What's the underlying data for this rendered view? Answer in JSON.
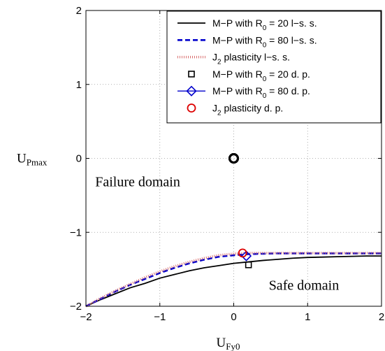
{
  "chart_data": {
    "type": "line",
    "xlim": [
      -2,
      2
    ],
    "ylim": [
      -2,
      2
    ],
    "xticks": [
      -2,
      -1,
      0,
      1,
      2
    ],
    "yticks": [
      -2,
      -1,
      0,
      1,
      2
    ],
    "xtick_labels": [
      "−2",
      "−1",
      "0",
      "1",
      "2"
    ],
    "ytick_labels": [
      "−2",
      "−1",
      "0",
      "1",
      "2"
    ],
    "xlabel": {
      "main": "U",
      "sub": "Fy0"
    },
    "ylabel": {
      "main": "U",
      "sub": "Pmax"
    },
    "grid": true,
    "legend_position": "top-right",
    "annotations": [
      {
        "text": "Failure domain",
        "x": -1.3,
        "y": -0.38
      },
      {
        "text": "Safe domain",
        "x": 0.95,
        "y": -1.78
      }
    ],
    "series": [
      {
        "name": {
          "pre": "M−P with R",
          "sub": "0",
          "post": " = 20 l−s. s."
        },
        "style": "solid",
        "color": "#000000",
        "x": [
          -2,
          -1.8,
          -1.6,
          -1.4,
          -1.2,
          -1.0,
          -0.8,
          -0.6,
          -0.4,
          -0.2,
          0.0,
          0.2,
          0.4,
          0.6,
          0.8,
          1.0,
          1.2,
          1.4,
          1.6,
          1.8,
          2.0
        ],
        "y": [
          -2.0,
          -1.91,
          -1.83,
          -1.75,
          -1.69,
          -1.62,
          -1.57,
          -1.52,
          -1.48,
          -1.45,
          -1.42,
          -1.4,
          -1.38,
          -1.365,
          -1.35,
          -1.34,
          -1.335,
          -1.33,
          -1.325,
          -1.32,
          -1.32
        ]
      },
      {
        "name": {
          "pre": "M−P with R",
          "sub": "0",
          "post": " = 80 l−s. s."
        },
        "style": "dashed",
        "color": "#0000cc",
        "x": [
          -2,
          -1.8,
          -1.6,
          -1.4,
          -1.2,
          -1.0,
          -0.8,
          -0.6,
          -0.4,
          -0.2,
          0.0,
          0.2,
          0.4,
          0.6,
          0.8,
          1.0,
          1.2,
          1.4,
          1.6,
          1.8,
          2.0
        ],
        "y": [
          -2.0,
          -1.9,
          -1.8,
          -1.71,
          -1.63,
          -1.55,
          -1.48,
          -1.42,
          -1.37,
          -1.33,
          -1.31,
          -1.295,
          -1.29,
          -1.285,
          -1.285,
          -1.285,
          -1.285,
          -1.285,
          -1.285,
          -1.285,
          -1.285
        ]
      },
      {
        "name": {
          "pre": "J",
          "sub": "2",
          "post": " plasticity l−s. s."
        },
        "style": "dotted",
        "color": "#d97070",
        "x": [
          -2,
          -1.8,
          -1.6,
          -1.4,
          -1.2,
          -1.0,
          -0.8,
          -0.6,
          -0.4,
          -0.2,
          0.0,
          0.2,
          0.4,
          0.6,
          0.8,
          1.0,
          1.2,
          1.4,
          1.6,
          1.8,
          2.0
        ],
        "y": [
          -2.0,
          -1.89,
          -1.79,
          -1.7,
          -1.61,
          -1.53,
          -1.46,
          -1.4,
          -1.35,
          -1.31,
          -1.29,
          -1.28,
          -1.28,
          -1.28,
          -1.28,
          -1.28,
          -1.28,
          -1.28,
          -1.28,
          -1.28,
          -1.28
        ]
      },
      {
        "name": {
          "pre": "M−P with R",
          "sub": "0",
          "post": " = 20 d. p."
        },
        "style": "marker-square",
        "color": "#000000",
        "points": [
          {
            "x": 0.0,
            "y": 0.0
          },
          {
            "x": 0.2,
            "y": -1.44
          }
        ]
      },
      {
        "name": {
          "pre": "M−P with R",
          "sub": "0",
          "post": " = 80 d. p."
        },
        "style": "marker-diamond",
        "color": "#0000cc",
        "points": [
          {
            "x": 0.0,
            "y": 0.0
          },
          {
            "x": 0.17,
            "y": -1.32
          }
        ]
      },
      {
        "name": {
          "pre": "J",
          "sub": "2",
          "post": " plasticity d. p."
        },
        "style": "marker-circle",
        "color": "#dd0000",
        "points": [
          {
            "x": 0.0,
            "y": 0.0
          },
          {
            "x": 0.12,
            "y": -1.28
          }
        ]
      }
    ]
  }
}
